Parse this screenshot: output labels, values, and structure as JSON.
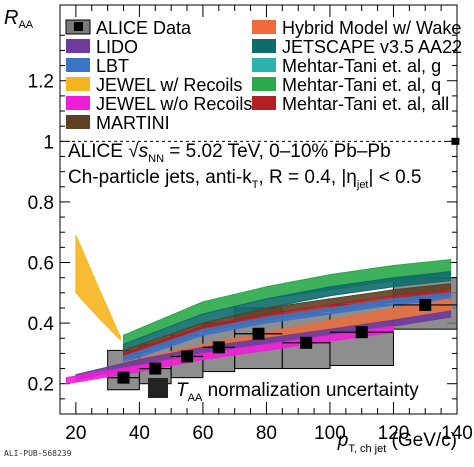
{
  "chart_data": {
    "type": "line",
    "ylabel_main": "R",
    "ylabel_sub": "AA",
    "xlabel_main": "p",
    "xlabel_sub": "T, ch jet",
    "xlabel_unit": "(GeV/c)",
    "xlim": [
      15,
      140
    ],
    "ylim": [
      0.1,
      1.45
    ],
    "x_ticks": [
      20,
      40,
      60,
      80,
      100,
      120,
      140
    ],
    "y_ticks": [
      0.2,
      0.4,
      0.6,
      0.8,
      1.0,
      1.2
    ],
    "y_tick_labels": [
      "0.2",
      "0.4",
      "0.6",
      "0.8",
      "1",
      "1.2"
    ],
    "reference_line": 1.0,
    "annotation_line1_a": "ALICE",
    "annotation_line1_sqrt": "s",
    "annotation_line1_sub": "NN",
    "annotation_line1_b": "= 5.02 TeV, 0–10% Pb–Pb",
    "annotation_line2": "Ch-particle jets, anti-k",
    "annotation_line2_kt_sub": "T",
    "annotation_line2_b": ", R = 0.4, |η",
    "annotation_line2_eta_sub": "jet",
    "annotation_line2_c": "| < 0.5",
    "norm_label_main": "T",
    "norm_label_sub": "AA",
    "norm_label_text": "normalization uncertainty",
    "publication_id": "ALI-PUB-568239",
    "data": {
      "name": "ALICE Data",
      "x": [
        35,
        45,
        55,
        65,
        77.5,
        92.5,
        110,
        130
      ],
      "y": [
        0.22,
        0.25,
        0.29,
        0.32,
        0.365,
        0.335,
        0.37,
        0.46
      ],
      "x_err": [
        5,
        5,
        5,
        5,
        7.5,
        7.5,
        10,
        10
      ],
      "sys_lo": [
        0.18,
        0.2,
        0.22,
        0.24,
        0.25,
        0.25,
        0.26,
        0.38
      ],
      "sys_hi": [
        0.31,
        0.33,
        0.36,
        0.4,
        0.45,
        0.43,
        0.46,
        0.55
      ],
      "color": "#000000",
      "sys_color": "#7a7a7a"
    },
    "legend_left": [
      "ALICE Data",
      "LIDO",
      "LBT",
      "JEWEL w/ Recoils",
      "JEWEL w/o Recoils",
      "MARTINI"
    ],
    "legend_right": [
      "Hybrid Model w/ Wake",
      "JETSCAPE v3.5 AA22",
      "Mehtar-Tani et. al, g",
      "Mehtar-Tani et. al, q",
      "Mehtar-Tani et. al, all"
    ],
    "series": [
      {
        "name": "JEWEL w/ Recoils",
        "color": "#f5b51e",
        "x": [
          20,
          27,
          34
        ],
        "lo": [
          0.5,
          0.42,
          0.345
        ],
        "hi": [
          0.69,
          0.52,
          0.355
        ]
      },
      {
        "name": "Mehtar-Tani et. al, q",
        "color": "#2aa84a",
        "x": [
          35,
          60,
          80,
          100,
          120,
          138
        ],
        "lo": [
          0.33,
          0.43,
          0.48,
          0.51,
          0.54,
          0.56
        ],
        "hi": [
          0.36,
          0.47,
          0.52,
          0.56,
          0.59,
          0.61
        ]
      },
      {
        "name": "JETSCAPE v3.5 AA22",
        "color": "#0e6c6c",
        "x": [
          35,
          60,
          80,
          100,
          120,
          138
        ],
        "lo": [
          0.31,
          0.4,
          0.45,
          0.49,
          0.52,
          0.54
        ],
        "hi": [
          0.33,
          0.43,
          0.48,
          0.52,
          0.55,
          0.57
        ]
      },
      {
        "name": "MARTINI",
        "color": "#5e4022",
        "x": [
          35,
          60,
          80,
          100,
          120,
          138
        ],
        "lo": [
          0.29,
          0.38,
          0.43,
          0.46,
          0.49,
          0.51
        ],
        "hi": [
          0.31,
          0.4,
          0.45,
          0.48,
          0.51,
          0.53
        ]
      },
      {
        "name": "Mehtar-Tani et. al, all",
        "color": "#b21f24",
        "x": [
          35,
          60,
          80,
          100,
          120,
          138
        ],
        "lo": [
          0.28,
          0.37,
          0.41,
          0.44,
          0.47,
          0.49
        ],
        "hi": [
          0.3,
          0.39,
          0.43,
          0.46,
          0.49,
          0.51
        ]
      },
      {
        "name": "LBT",
        "color": "#3a74c4",
        "x": [
          35,
          60,
          80,
          100,
          120,
          138
        ],
        "lo": [
          0.27,
          0.36,
          0.4,
          0.43,
          0.46,
          0.48
        ],
        "hi": [
          0.29,
          0.38,
          0.42,
          0.45,
          0.48,
          0.5
        ]
      },
      {
        "name": "Mehtar-Tani et. al, g",
        "color": "#2ab3ad",
        "x": [
          35,
          60,
          80,
          100,
          120,
          138
        ],
        "lo": [
          0.25,
          0.3,
          0.34,
          0.38,
          0.42,
          0.45
        ],
        "hi": [
          0.27,
          0.33,
          0.37,
          0.41,
          0.45,
          0.48
        ]
      },
      {
        "name": "Hybrid Model w/ Wake",
        "color": "#f06a3c",
        "x": [
          35,
          60,
          80,
          100,
          120,
          138
        ],
        "lo": [
          0.24,
          0.3,
          0.34,
          0.37,
          0.41,
          0.44
        ],
        "hi": [
          0.27,
          0.33,
          0.37,
          0.41,
          0.45,
          0.48
        ]
      },
      {
        "name": "LIDO",
        "color": "#6e3a9c",
        "x": [
          20,
          40,
          60,
          80,
          100,
          120,
          138
        ],
        "lo": [
          0.21,
          0.26,
          0.3,
          0.33,
          0.36,
          0.39,
          0.42
        ],
        "hi": [
          0.23,
          0.28,
          0.32,
          0.35,
          0.38,
          0.41,
          0.44
        ]
      },
      {
        "name": "JEWEL w/o Recoils",
        "color": "#ee1fd6",
        "x": [
          17,
          40,
          60,
          80,
          100,
          120
        ],
        "lo": [
          0.2,
          0.24,
          0.28,
          0.31,
          0.34,
          0.37
        ],
        "hi": [
          0.22,
          0.26,
          0.3,
          0.33,
          0.36,
          0.39
        ]
      }
    ],
    "legend_colors": {
      "ALICE Data": "#000000",
      "LIDO": "#6e3a9c",
      "LBT": "#3a74c4",
      "JEWEL w/ Recoils": "#f5b51e",
      "JEWEL w/o Recoils": "#ee1fd6",
      "MARTINI": "#5e4022",
      "Hybrid Model w/ Wake": "#f06a3c",
      "JETSCAPE v3.5 AA22": "#0e6c6c",
      "Mehtar-Tani et. al, g": "#2ab3ad",
      "Mehtar-Tani et. al, q": "#2aa84a",
      "Mehtar-Tani et. al, all": "#b21f24"
    },
    "norm_uncertainty": {
      "x": 139.5,
      "lo": 0.995,
      "hi": 1.005,
      "color": "#000000"
    }
  }
}
